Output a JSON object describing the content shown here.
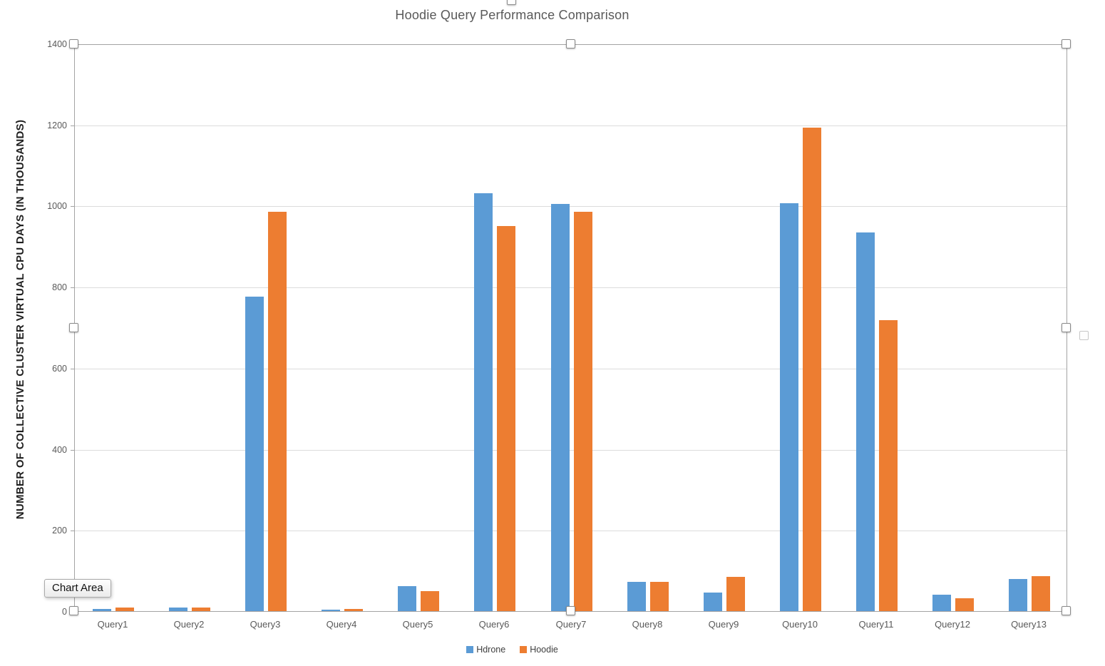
{
  "chart_data": {
    "type": "bar",
    "title": "Hoodie Query Performance Comparison",
    "xlabel": "",
    "ylabel": "NUMBER OF COLLECTIVE CLUSTER VIRTUAL CPU DAYS (IN THOUSANDS)",
    "categories": [
      "Query1",
      "Query2",
      "Query3",
      "Query4",
      "Query5",
      "Query6",
      "Query7",
      "Query8",
      "Query9",
      "Query10",
      "Query11",
      "Query12",
      "Query13"
    ],
    "series": [
      {
        "name": "Hdrone",
        "color": "#5B9BD5",
        "values": [
          5,
          9,
          775,
          4,
          62,
          1030,
          1005,
          72,
          46,
          1006,
          934,
          40,
          79
        ]
      },
      {
        "name": "Hoodie",
        "color": "#ED7D31",
        "values": [
          9,
          8,
          985,
          5,
          50,
          950,
          985,
          72,
          85,
          1192,
          718,
          32,
          86
        ]
      }
    ],
    "ylim": [
      0,
      1400
    ],
    "ytick_step": 200,
    "grid": true,
    "legend_position": "bottom"
  },
  "tooltip": {
    "label": "Chart Area"
  },
  "selection": {
    "selected": "chart-area",
    "handle_count": 8
  },
  "colors": {
    "gridline": "#dcdcdc",
    "axis_line": "#a3a3a3",
    "tick_text": "#595959",
    "title_text": "#595959",
    "ylabel_text": "#1f1f1f"
  }
}
